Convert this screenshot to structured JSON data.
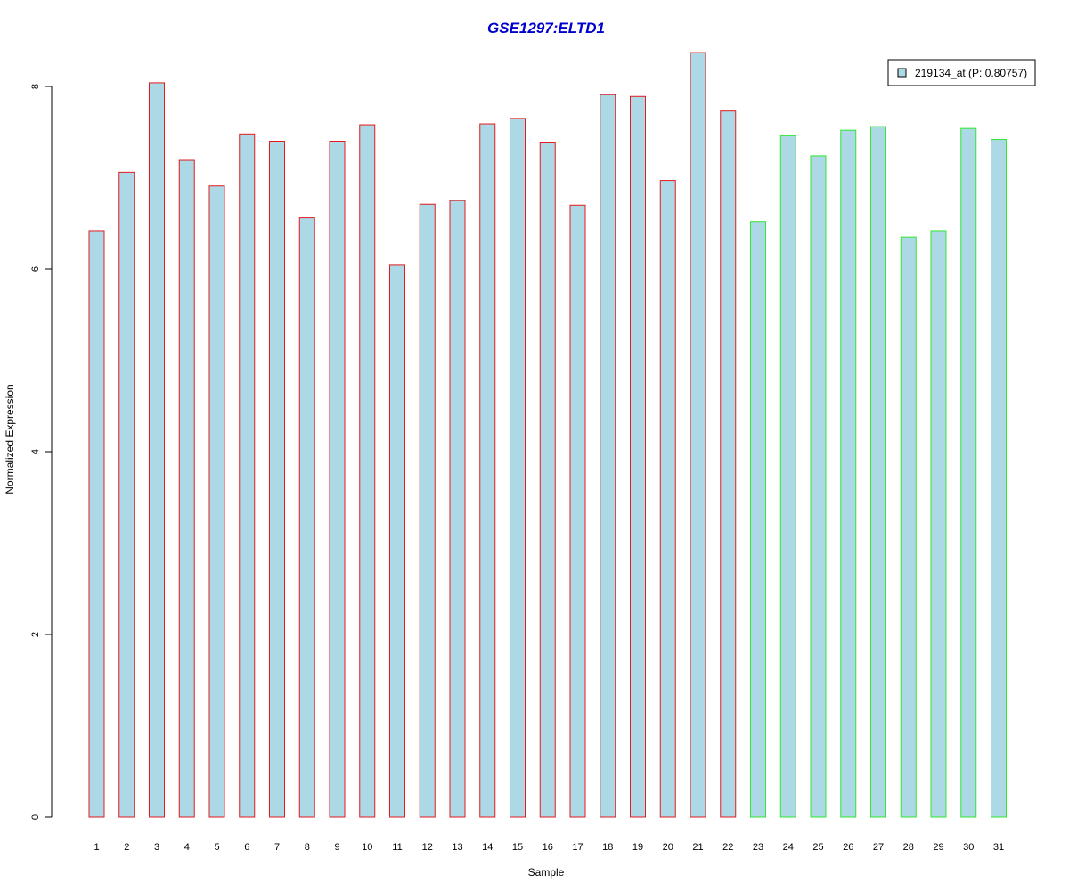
{
  "chart_data": {
    "type": "bar",
    "title": "GSE1297:ELTD1",
    "xlabel": "Sample",
    "ylabel": "Normalized Expression",
    "ylim": [
      0,
      8.35
    ],
    "yticks": [
      0,
      2,
      4,
      6,
      8
    ],
    "grid": false,
    "legend": {
      "placement": "top-right",
      "label": "219134_at (P: 0.80757)"
    },
    "categories": [
      "1",
      "2",
      "3",
      "4",
      "5",
      "6",
      "7",
      "8",
      "9",
      "10",
      "11",
      "12",
      "13",
      "14",
      "15",
      "16",
      "17",
      "18",
      "19",
      "20",
      "21",
      "22",
      "23",
      "24",
      "25",
      "26",
      "27",
      "28",
      "29",
      "30",
      "31"
    ],
    "values": [
      6.42,
      7.06,
      8.04,
      7.19,
      6.91,
      7.48,
      7.4,
      6.56,
      7.4,
      7.58,
      6.05,
      6.71,
      6.75,
      7.59,
      7.65,
      7.39,
      6.7,
      7.91,
      7.89,
      6.97,
      8.37,
      7.73,
      6.52,
      7.46,
      7.24,
      7.52,
      7.56,
      6.35,
      6.42,
      7.54,
      7.42
    ],
    "groups": [
      {
        "from": 1,
        "to": 22,
        "border_color": "#e41a1c"
      },
      {
        "from": 23,
        "to": 31,
        "border_color": "#2ee82e"
      }
    ],
    "bar_fill": "#add8e6",
    "title_color": "#0000cd"
  }
}
